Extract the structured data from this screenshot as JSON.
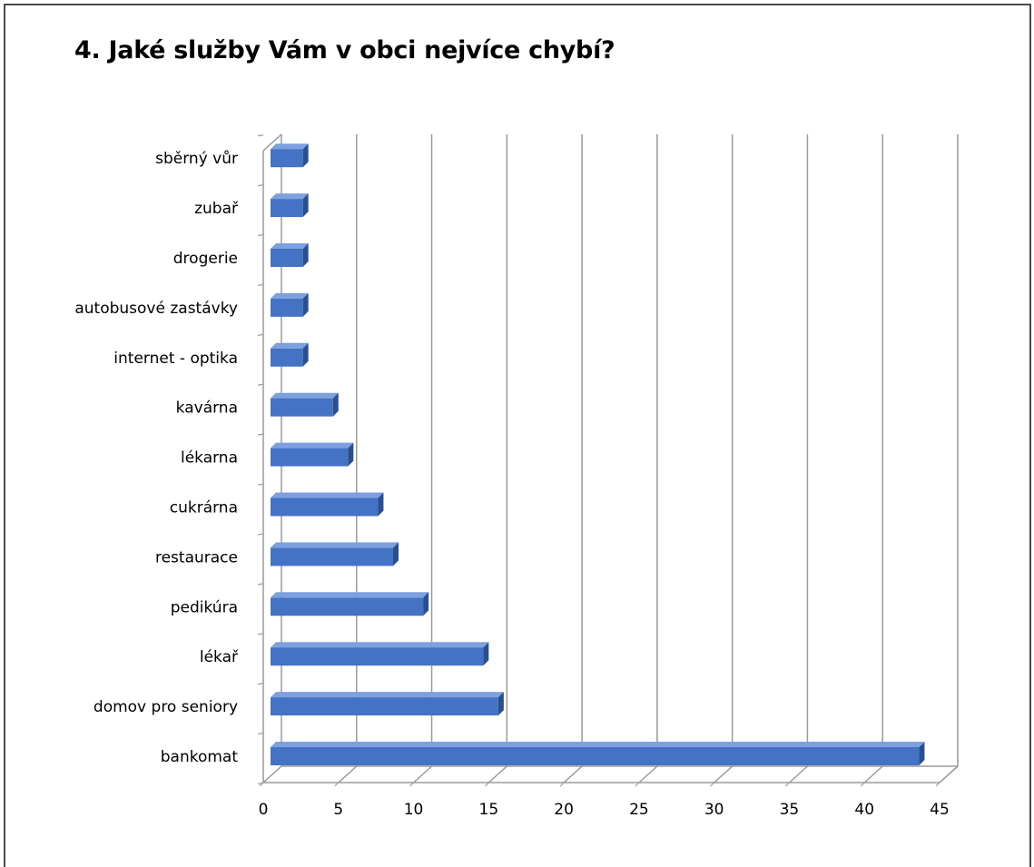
{
  "chart_data": {
    "type": "bar",
    "orientation": "horizontal",
    "style": "3d",
    "title": "4. Jaké služby Vám v obci nejvíce chybí?",
    "categories": [
      "bankomat",
      "domov pro seniory",
      "lékař",
      "pedikúra",
      "restaurace",
      "cukrárna",
      "lékarna",
      "kavárna",
      "internet - optika",
      "autobusové zastávky",
      "drogerie",
      "zubař",
      "sběrný vůr"
    ],
    "values": [
      44,
      16,
      15,
      11,
      9,
      8,
      6,
      5,
      3,
      3,
      3,
      3,
      3
    ],
    "xlim": [
      0,
      45
    ],
    "xticks": [
      "0",
      "5",
      "10",
      "15",
      "20",
      "25",
      "30",
      "35",
      "40",
      "45"
    ],
    "grid": true,
    "legend": "none",
    "colors": {
      "bar_front": "#4472c4",
      "bar_top": "#7da1df",
      "bar_side": "#2c4f8c",
      "grid": "#9a9a9a"
    }
  }
}
